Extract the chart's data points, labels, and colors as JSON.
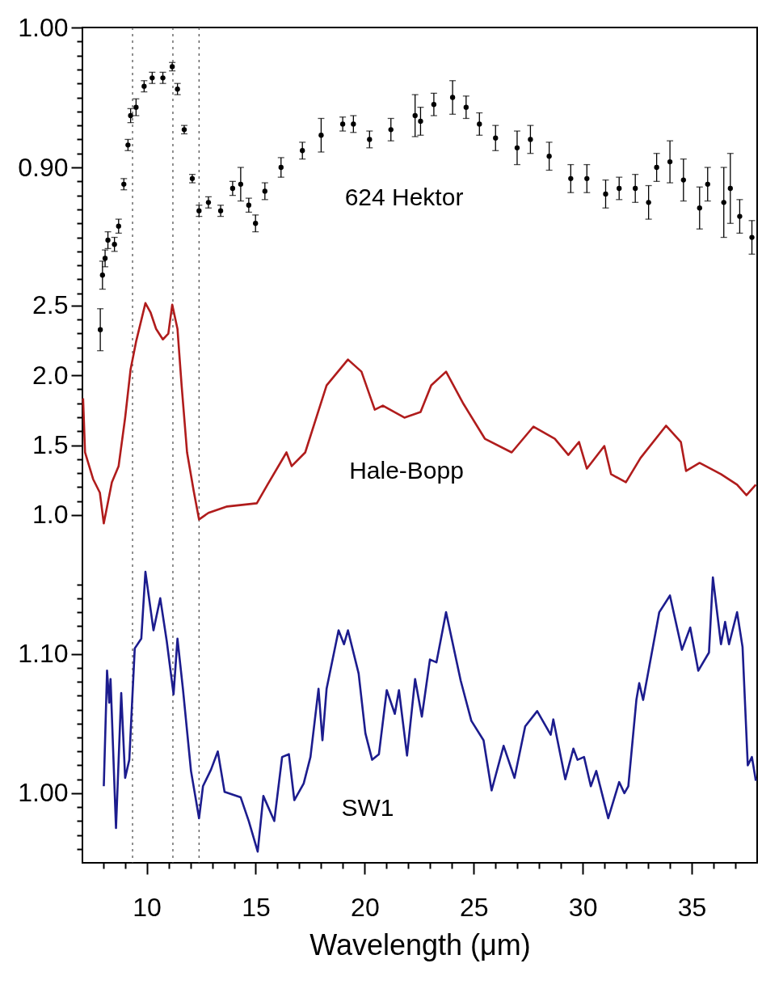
{
  "chart_data": {
    "type": "line",
    "xlabel": "Wavelength (μm)",
    "xlim": [
      7.05,
      38.0
    ],
    "xticks": [
      {
        "value": 8,
        "label": null
      },
      {
        "value": 9,
        "label": null
      },
      10,
      {
        "value": 11,
        "label": null
      },
      {
        "value": 12,
        "label": null
      },
      {
        "value": 13,
        "label": null
      },
      {
        "value": 14,
        "label": null
      },
      15,
      {
        "value": 16,
        "label": null
      },
      {
        "value": 17,
        "label": null
      },
      {
        "value": 18,
        "label": null
      },
      {
        "value": 19,
        "label": null
      },
      20,
      {
        "value": 21,
        "label": null
      },
      {
        "value": 22,
        "label": null
      },
      {
        "value": 23,
        "label": null
      },
      {
        "value": 24,
        "label": null
      },
      25,
      {
        "value": 26,
        "label": null
      },
      {
        "value": 27,
        "label": null
      },
      {
        "value": 28,
        "label": null
      },
      {
        "value": 29,
        "label": null
      },
      30,
      {
        "value": 31,
        "label": null
      },
      {
        "value": 32,
        "label": null
      },
      {
        "value": 33,
        "label": null
      },
      {
        "value": 34,
        "label": null
      },
      35,
      {
        "value": 36,
        "label": null
      },
      {
        "value": 37,
        "label": null
      }
    ],
    "ylim": [
      0.403,
      1.0
    ],
    "yticks": [
      {
        "value": 1,
        "label": "1.00"
      },
      {
        "value": 0.99,
        "label": null
      },
      {
        "value": 0.98,
        "label": null
      },
      {
        "value": 0.97,
        "label": null
      },
      {
        "value": 0.96,
        "label": null
      },
      {
        "value": 0.95,
        "label": null
      },
      {
        "value": 0.94,
        "label": null
      },
      {
        "value": 0.93,
        "label": null
      },
      {
        "value": 0.92,
        "label": null
      },
      {
        "value": 0.91,
        "label": null
      },
      {
        "value": 0.9,
        "label": "0.90"
      },
      {
        "value": 0.89,
        "label": null
      },
      {
        "value": 0.88,
        "label": null
      },
      {
        "value": 0.87,
        "label": null
      },
      {
        "value": 0.86,
        "label": null
      },
      {
        "value": 0.85,
        "label": null
      },
      {
        "value": 0.84,
        "label": null
      },
      {
        "value": 0.83,
        "label": null
      },
      {
        "value": 0.82,
        "label": null
      },
      {
        "value": 0.81,
        "label": null
      }
    ],
    "y2lim": [
      -1.49,
      4.49
    ],
    "y2ticks": [
      2.5,
      {
        "value": 2.4,
        "label": null
      },
      {
        "value": 2.3,
        "label": null
      },
      {
        "value": 2.2,
        "label": null
      },
      {
        "value": 2.1,
        "label": null
      },
      {
        "value": 2,
        "label": "2.0"
      },
      {
        "value": 1.9,
        "label": null
      },
      {
        "value": 1.8,
        "label": null
      },
      {
        "value": 1.7,
        "label": null
      },
      {
        "value": 1.6,
        "label": null
      },
      1.5,
      {
        "value": 1.4,
        "label": null
      },
      {
        "value": 1.3,
        "label": null
      },
      {
        "value": 1.2,
        "label": null
      },
      {
        "value": 1.1,
        "label": null
      },
      {
        "value": 1,
        "label": "1.0"
      }
    ],
    "y3lim": [
      0.95,
      1.55
    ],
    "y3ticks": [
      {
        "value": 1.15,
        "label": null
      },
      {
        "value": 1.14,
        "label": null
      },
      {
        "value": 1.13,
        "label": null
      },
      {
        "value": 1.12,
        "label": null
      },
      {
        "value": 1.11,
        "label": null
      },
      {
        "value": 1.1,
        "label": "1.10"
      },
      {
        "value": 1.09,
        "label": null
      },
      {
        "value": 1.08,
        "label": null
      },
      {
        "value": 1.07,
        "label": null
      },
      {
        "value": 1.06,
        "label": null
      },
      {
        "value": 1.05,
        "label": null
      },
      {
        "value": 1.04,
        "label": null
      },
      {
        "value": 1.03,
        "label": null
      },
      {
        "value": 1.02,
        "label": null
      },
      {
        "value": 1.01,
        "label": null
      },
      {
        "value": 1,
        "label": "1.00"
      },
      {
        "value": 0.99,
        "label": null
      },
      {
        "value": 0.98,
        "label": null
      },
      {
        "value": 0.97,
        "label": null
      },
      {
        "value": 0.96,
        "label": null
      }
    ],
    "ref_lines": [
      {
        "axis": "x",
        "value": 9.35,
        "color": "#555555",
        "line_style": "dotted"
      },
      {
        "axis": "x",
        "value": 11.2,
        "color": "#555555",
        "line_style": "dotted"
      },
      {
        "axis": "x",
        "value": 12.4,
        "color": "#555555",
        "line_style": "dotted"
      }
    ],
    "series": [
      {
        "name": "624 Hektor",
        "type": "scatter",
        "marker": "circle",
        "axis": "y",
        "color": "#000000",
        "x": [
          7.87,
          7.97,
          8.09,
          8.22,
          8.52,
          8.71,
          8.95,
          9.14,
          9.26,
          9.51,
          9.88,
          10.25,
          10.74,
          11.17,
          11.41,
          11.72,
          12.09,
          12.4,
          12.83,
          13.39,
          13.94,
          14.31,
          14.68,
          14.99,
          15.42,
          16.16,
          17.14,
          18.0,
          18.99,
          19.48,
          20.22,
          21.2,
          22.31,
          22.56,
          23.17,
          24.03,
          24.65,
          25.26,
          26.0,
          26.99,
          27.6,
          28.46,
          29.45,
          30.19,
          31.05,
          31.67,
          32.41,
          33.02,
          33.39,
          34.0,
          34.62,
          35.36,
          35.73,
          36.47,
          36.77,
          37.2,
          37.76
        ],
        "values": [
          0.784,
          0.823,
          0.835,
          0.848,
          0.845,
          0.858,
          0.888,
          0.916,
          0.937,
          0.943,
          0.958,
          0.964,
          0.964,
          0.972,
          0.956,
          0.927,
          0.892,
          0.869,
          0.875,
          0.869,
          0.885,
          0.888,
          0.873,
          0.86,
          0.883,
          0.9,
          0.912,
          0.923,
          0.931,
          0.931,
          0.92,
          0.927,
          0.937,
          0.933,
          0.945,
          0.95,
          0.943,
          0.931,
          0.921,
          0.914,
          0.92,
          0.908,
          0.892,
          0.892,
          0.881,
          0.885,
          0.885,
          0.875,
          0.9,
          0.904,
          0.891,
          0.871,
          0.888,
          0.875,
          0.885,
          0.865,
          0.85
        ],
        "errors": [
          0.015,
          0.01,
          0.006,
          0.006,
          0.005,
          0.005,
          0.004,
          0.004,
          0.005,
          0.006,
          0.004,
          0.004,
          0.004,
          0.003,
          0.004,
          0.003,
          0.003,
          0.004,
          0.004,
          0.004,
          0.005,
          0.012,
          0.005,
          0.006,
          0.006,
          0.007,
          0.006,
          0.012,
          0.005,
          0.006,
          0.006,
          0.008,
          0.015,
          0.01,
          0.008,
          0.012,
          0.008,
          0.008,
          0.009,
          0.012,
          0.01,
          0.01,
          0.01,
          0.01,
          0.01,
          0.008,
          0.01,
          0.012,
          0.01,
          0.015,
          0.015,
          0.015,
          0.012,
          0.025,
          0.025,
          0.012,
          0.012
        ]
      },
      {
        "name": "Hale-Bopp",
        "axis": "y2",
        "color": "#b01c1c",
        "x": [
          7.08,
          7.17,
          7.54,
          7.85,
          8.03,
          8.4,
          8.71,
          9.01,
          9.26,
          9.51,
          9.94,
          10.18,
          10.43,
          10.74,
          10.99,
          11.17,
          11.41,
          11.6,
          11.85,
          12.15,
          12.4,
          12.83,
          13.69,
          15.05,
          15.54,
          16.41,
          16.65,
          17.27,
          18.25,
          19.23,
          19.85,
          20.46,
          20.83,
          21.82,
          22.56,
          23.05,
          23.73,
          24.53,
          25.51,
          26.74,
          27.74,
          28.72,
          29.34,
          29.83,
          30.19,
          30.99,
          31.3,
          31.98,
          32.65,
          33.82,
          34.5,
          34.74,
          35.36,
          36.34,
          37.08,
          37.51,
          37.94
        ],
        "values": [
          1.835,
          1.448,
          1.257,
          1.16,
          0.94,
          1.234,
          1.35,
          1.697,
          2.043,
          2.24,
          2.517,
          2.448,
          2.332,
          2.257,
          2.298,
          2.506,
          2.332,
          1.928,
          1.448,
          1.176,
          0.968,
          1.015,
          1.061,
          1.084,
          1.217,
          1.448,
          1.35,
          1.448,
          1.928,
          2.113,
          2.026,
          1.754,
          1.783,
          1.697,
          1.737,
          1.928,
          2.026,
          1.795,
          1.546,
          1.448,
          1.633,
          1.546,
          1.43,
          1.523,
          1.332,
          1.494,
          1.292,
          1.234,
          1.408,
          1.639,
          1.523,
          1.315,
          1.373,
          1.292,
          1.217,
          1.142,
          1.217
        ]
      },
      {
        "name": "SW1",
        "axis": "y3",
        "color": "#1c1c8e",
        "x": [
          8.03,
          8.18,
          8.28,
          8.34,
          8.59,
          8.83,
          9.01,
          9.2,
          9.45,
          9.75,
          9.94,
          10.31,
          10.62,
          10.92,
          11.23,
          11.41,
          11.66,
          12.03,
          12.4,
          12.58,
          12.95,
          13.26,
          13.57,
          14.31,
          14.68,
          15.09,
          15.35,
          15.85,
          16.21,
          16.52,
          16.77,
          17.2,
          17.51,
          17.88,
          18.06,
          18.25,
          18.8,
          19.05,
          19.23,
          19.72,
          20.03,
          20.34,
          20.65,
          21.01,
          21.38,
          21.57,
          21.94,
          22.31,
          22.62,
          22.99,
          23.29,
          23.73,
          24.4,
          24.89,
          25.45,
          25.82,
          26.37,
          26.87,
          27.36,
          27.91,
          28.53,
          28.65,
          29.2,
          29.57,
          29.76,
          30.06,
          30.37,
          30.62,
          31.17,
          31.67,
          31.91,
          32.09,
          32.46,
          32.59,
          32.77,
          33.51,
          34.0,
          34.55,
          34.93,
          35.3,
          35.79,
          35.97,
          36.34,
          36.53,
          36.71,
          37.08,
          37.33,
          37.57,
          37.76,
          37.94
        ],
        "values": [
          1.005,
          1.088,
          1.065,
          1.082,
          0.975,
          1.072,
          1.011,
          1.024,
          1.104,
          1.111,
          1.159,
          1.117,
          1.14,
          1.109,
          1.071,
          1.111,
          1.075,
          1.016,
          0.982,
          1.005,
          1.017,
          1.03,
          1.001,
          0.997,
          0.98,
          0.958,
          0.998,
          0.98,
          1.026,
          1.028,
          0.995,
          1.007,
          1.026,
          1.075,
          1.038,
          1.075,
          1.117,
          1.107,
          1.117,
          1.086,
          1.043,
          1.024,
          1.028,
          1.074,
          1.057,
          1.074,
          1.027,
          1.082,
          1.055,
          1.096,
          1.094,
          1.13,
          1.081,
          1.052,
          1.038,
          1.002,
          1.034,
          1.011,
          1.048,
          1.059,
          1.042,
          1.053,
          1.01,
          1.032,
          1.024,
          1.026,
          1.005,
          1.016,
          0.982,
          1.008,
          1.0,
          1.005,
          1.067,
          1.079,
          1.067,
          1.13,
          1.142,
          1.103,
          1.119,
          1.088,
          1.101,
          1.155,
          1.107,
          1.123,
          1.107,
          1.13,
          1.105,
          1.02,
          1.026,
          1.009
        ]
      }
    ]
  }
}
